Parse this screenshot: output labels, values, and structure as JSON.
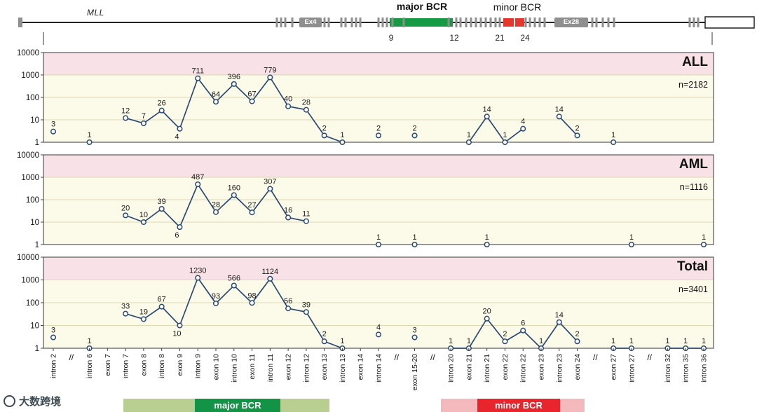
{
  "gene_diagram": {
    "gene_label": "MLL",
    "major_bcr_label": "major BCR",
    "minor_bcr_label": "minor BCR",
    "exon_box_labels": [
      "Ex4",
      "Ex28"
    ],
    "exon_numbers": [
      "9",
      "12",
      "21",
      "24"
    ],
    "colors": {
      "major_bcr": "#169a43",
      "minor_bcr": "#e6372e",
      "exon": "#8f8f8f"
    }
  },
  "chart_data": {
    "type": "line",
    "yscale": "log",
    "ylim": [
      1,
      10000
    ],
    "yticks": [
      1,
      10,
      100,
      1000,
      10000
    ],
    "categories": [
      "intron 2",
      "//",
      "intron 6",
      "exon 7",
      "intron 7",
      "exon 8",
      "intron 8",
      "exon 9",
      "intron 9",
      "exon 10",
      "intron 10",
      "exon 11",
      "intron 11",
      "exon 12",
      "intron 12",
      "exon 13",
      "intron 13",
      "exon 14",
      "intron 14",
      "//",
      "exon 15-20",
      "//",
      "intron 20",
      "exon 21",
      "intron 21",
      "exon 22",
      "intron 22",
      "exon 23",
      "intron 23",
      "exon 24",
      "//",
      "exon 27",
      "intron 27",
      "//",
      "intron 32",
      "intron 35",
      "intron 36"
    ],
    "breaks": [
      1,
      19,
      21,
      30,
      33
    ],
    "label_below_indices": [
      7
    ],
    "panels": [
      {
        "title": "ALL",
        "n_label": "n=2182",
        "values": [
          3,
          null,
          1,
          null,
          12,
          7,
          26,
          4,
          711,
          64,
          396,
          67,
          779,
          40,
          28,
          2,
          1,
          null,
          2,
          null,
          2,
          null,
          null,
          1,
          14,
          1,
          4,
          null,
          14,
          2,
          null,
          1,
          null,
          null,
          null,
          null,
          null
        ]
      },
      {
        "title": "AML",
        "n_label": "n=1116",
        "values": [
          null,
          null,
          null,
          null,
          20,
          10,
          39,
          6,
          487,
          28,
          160,
          27,
          307,
          16,
          11,
          null,
          null,
          null,
          1,
          null,
          1,
          null,
          null,
          null,
          1,
          null,
          null,
          null,
          null,
          null,
          null,
          null,
          1,
          null,
          null,
          null,
          1
        ]
      },
      {
        "title": "Total",
        "n_label": "n=3401",
        "values": [
          3,
          null,
          1,
          null,
          33,
          19,
          67,
          10,
          1230,
          93,
          566,
          98,
          1124,
          56,
          39,
          2,
          1,
          null,
          4,
          null,
          3,
          null,
          1,
          1,
          20,
          2,
          6,
          1,
          14,
          2,
          null,
          1,
          1,
          null,
          1,
          1,
          1
        ]
      }
    ],
    "colors": {
      "line": "#2b4a73",
      "band_top": "#f8e2e8",
      "panel_bg": "#fcfbe9",
      "grid": "#ddd7b2"
    }
  },
  "bottom_bars": {
    "major": {
      "label": "major BCR",
      "light_color": "#b9cf92",
      "dark_color": "#129346"
    },
    "minor": {
      "label": "minor BCR",
      "light_color": "#f3b9bc",
      "dark_color": "#e8242c"
    }
  },
  "watermark": {
    "text": "大数跨境"
  }
}
